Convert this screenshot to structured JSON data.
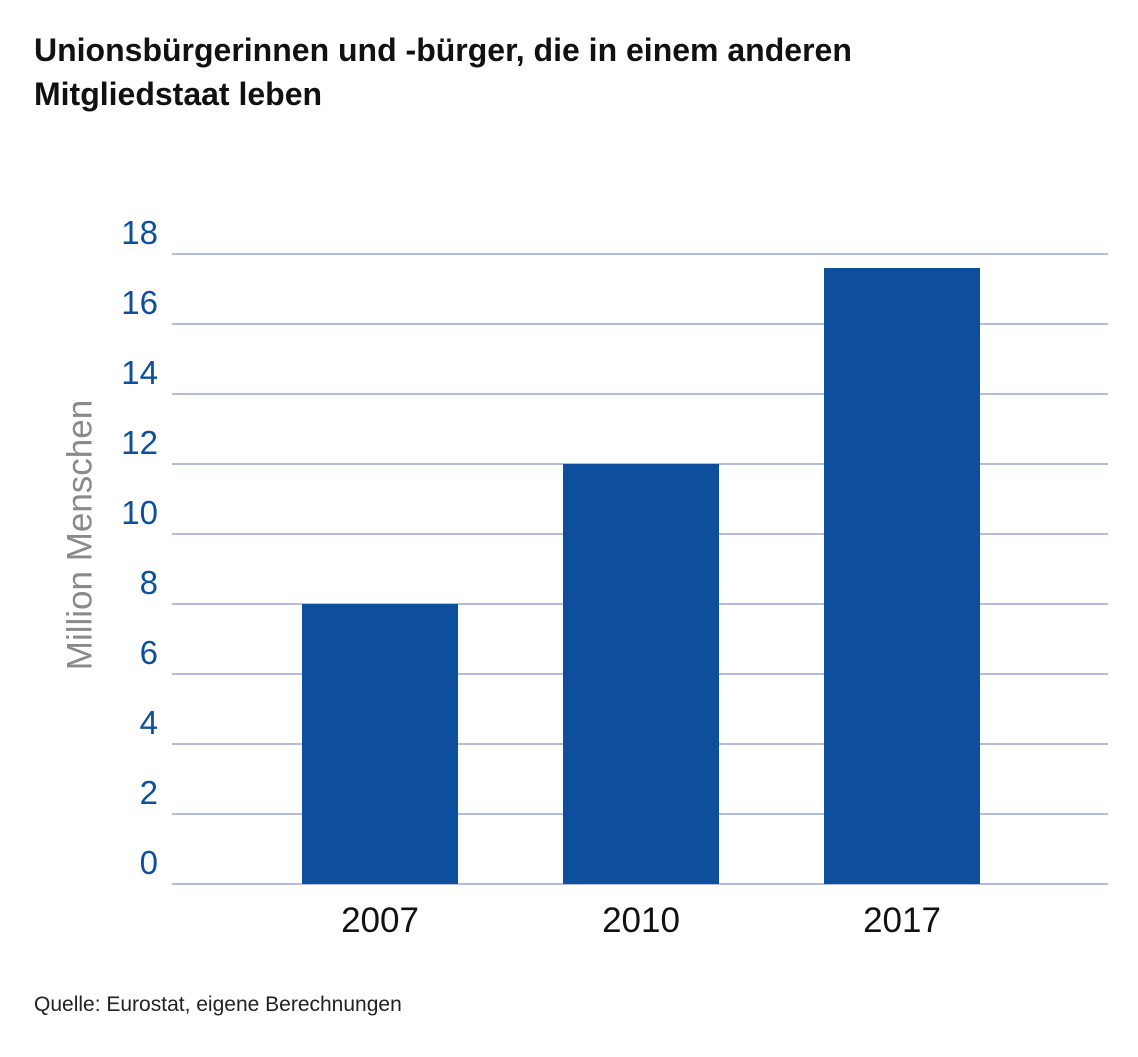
{
  "chart_data": {
    "type": "bar",
    "title": "Unionsbürgerinnen und -bürger, die in einem anderen Mitgliedstaat leben",
    "xlabel": "",
    "ylabel": "Million Menschen",
    "categories": [
      "2007",
      "2010",
      "2017"
    ],
    "values": [
      8.0,
      12.0,
      17.6
    ],
    "ylim": [
      0,
      18
    ],
    "yticks": [
      "0",
      "2",
      "4",
      "6",
      "8",
      "10",
      "12",
      "14",
      "16",
      "18"
    ],
    "grid": true,
    "colors": {
      "bar": "#0d4f9c",
      "grid": "#9aa6d0",
      "ytick": "#0d4f9c",
      "ylabel": "#8a8a8a",
      "xtick": "#111111"
    }
  },
  "source": "Quelle: Eurostat, eigene Berechnungen"
}
